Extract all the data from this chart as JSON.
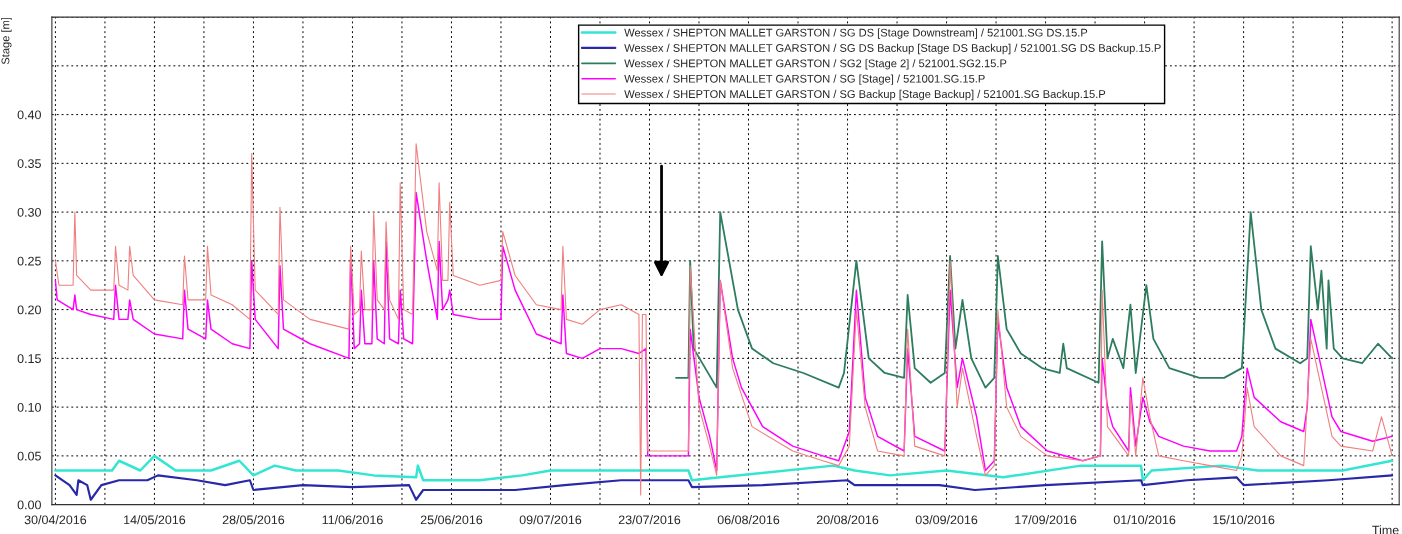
{
  "chart_data": {
    "type": "line",
    "xlabel": "Time",
    "ylabel": "Stage [m]",
    "xlim": [
      "2016-04-29T12:00",
      "2016-11-06"
    ],
    "ylim": [
      0,
      0.5
    ],
    "xticks": [
      {
        "value": "2016-04-30",
        "label": "30/04/2016"
      },
      {
        "value": "2016-05-07",
        "label": null
      },
      {
        "value": "2016-05-14",
        "label": "14/05/2016"
      },
      {
        "value": "2016-05-21",
        "label": null
      },
      {
        "value": "2016-05-28",
        "label": "28/05/2016"
      },
      {
        "value": "2016-06-04",
        "label": null
      },
      {
        "value": "2016-06-11",
        "label": "11/06/2016"
      },
      {
        "value": "2016-06-18",
        "label": null
      },
      {
        "value": "2016-06-25",
        "label": "25/06/2016"
      },
      {
        "value": "2016-07-02",
        "label": null
      },
      {
        "value": "2016-07-09",
        "label": "09/07/2016"
      },
      {
        "value": "2016-07-16",
        "label": null
      },
      {
        "value": "2016-07-23",
        "label": "23/07/2016"
      },
      {
        "value": "2016-07-30",
        "label": null
      },
      {
        "value": "2016-08-06",
        "label": "06/08/2016"
      },
      {
        "value": "2016-08-13",
        "label": null
      },
      {
        "value": "2016-08-20",
        "label": "20/08/2016"
      },
      {
        "value": "2016-08-27",
        "label": null
      },
      {
        "value": "2016-09-03",
        "label": "03/09/2016"
      },
      {
        "value": "2016-09-10",
        "label": null
      },
      {
        "value": "2016-09-17",
        "label": "17/09/2016"
      },
      {
        "value": "2016-09-24",
        "label": null
      },
      {
        "value": "2016-10-01",
        "label": "01/10/2016"
      },
      {
        "value": "2016-10-08",
        "label": null
      },
      {
        "value": "2016-10-15",
        "label": "15/10/2016"
      },
      {
        "value": "2016-10-22",
        "label": null
      },
      {
        "value": "2016-10-29",
        "label": null
      },
      {
        "value": "2016-11-05",
        "label": null
      }
    ],
    "yticks": [
      {
        "value": 0,
        "label": "0.00"
      },
      {
        "value": 0.05,
        "label": "0.05"
      },
      {
        "value": 0.1,
        "label": "0.10"
      },
      {
        "value": 0.15,
        "label": "0.15"
      },
      {
        "value": 0.2,
        "label": "0.20"
      },
      {
        "value": 0.25,
        "label": "0.25"
      },
      {
        "value": 0.3,
        "label": "0.30"
      },
      {
        "value": 0.35,
        "label": "0.35"
      },
      {
        "value": 0.4,
        "label": "0.40"
      },
      {
        "value": 0.45,
        "label": null
      },
      {
        "value": 0.5,
        "label": null
      }
    ],
    "grid": true,
    "legend": "top right",
    "line_style": "solid",
    "marker": "none",
    "series": [
      {
        "name": "Wessex / SHEPTON MALLET GARSTON / SG DS [Stage Downstream] / 521001.SG DS.15.P",
        "color": "#33e6d2",
        "x": [
          "2016-04-30",
          "2016-05-08",
          "2016-05-09",
          "2016-05-12",
          "2016-05-14",
          "2016-05-17",
          "2016-05-22",
          "2016-05-26",
          "2016-05-28",
          "2016-05-31",
          "2016-06-03",
          "2016-06-09",
          "2016-06-14",
          "2016-06-20",
          "2016-06-20T06:00",
          "2016-06-21",
          "2016-06-29",
          "2016-07-05",
          "2016-07-09",
          "2016-07-19",
          "2016-07-28T12:00",
          "2016-07-29",
          "2016-08-02",
          "2016-08-18",
          "2016-08-21",
          "2016-08-26",
          "2016-09-03",
          "2016-09-11",
          "2016-09-22",
          "2016-09-30T12:00",
          "2016-09-30T18:00",
          "2016-10-02",
          "2016-10-12",
          "2016-10-17",
          "2016-10-29",
          "2016-11-05"
        ],
        "values": [
          0.035,
          0.035,
          0.045,
          0.035,
          0.05,
          0.035,
          0.035,
          0.045,
          0.03,
          0.04,
          0.035,
          0.035,
          0.03,
          0.028,
          0.04,
          0.025,
          0.025,
          0.03,
          0.035,
          0.035,
          0.035,
          0.025,
          0.028,
          0.04,
          0.035,
          0.03,
          0.035,
          0.028,
          0.04,
          0.04,
          0.025,
          0.035,
          0.04,
          0.035,
          0.035,
          0.045
        ]
      },
      {
        "name": "Wessex / SHEPTON MALLET GARSTON / SG DS Backup [Stage DS Backup] / 521001.SG DS Backup.15.P",
        "color": "#2828a8",
        "x": [
          "2016-04-30",
          "2016-05-02",
          "2016-05-03",
          "2016-05-03T06:00",
          "2016-05-04T12:00",
          "2016-05-05",
          "2016-05-06T12:00",
          "2016-05-09",
          "2016-05-13",
          "2016-05-14T12:00",
          "2016-05-20",
          "2016-05-24",
          "2016-05-27T12:00",
          "2016-05-28",
          "2016-06-04",
          "2016-06-11",
          "2016-06-19",
          "2016-06-20",
          "2016-06-21",
          "2016-07-04",
          "2016-07-11",
          "2016-07-19",
          "2016-07-28T12:00",
          "2016-07-29",
          "2016-08-08",
          "2016-08-20",
          "2016-08-21",
          "2016-09-02",
          "2016-09-07",
          "2016-09-17",
          "2016-09-30T12:00",
          "2016-09-30T18:00",
          "2016-10-07",
          "2016-10-14",
          "2016-10-15",
          "2016-10-27",
          "2016-11-05"
        ],
        "values": [
          0.03,
          0.02,
          0.01,
          0.025,
          0.02,
          0.005,
          0.02,
          0.025,
          0.025,
          0.03,
          0.025,
          0.02,
          0.025,
          0.015,
          0.02,
          0.018,
          0.02,
          0.005,
          0.015,
          0.015,
          0.02,
          0.025,
          0.025,
          0.018,
          0.02,
          0.025,
          0.02,
          0.02,
          0.015,
          0.02,
          0.025,
          0.02,
          0.025,
          0.028,
          0.02,
          0.025,
          0.03
        ]
      },
      {
        "name": "Wessex / SHEPTON MALLET GARSTON / SG2 [Stage 2] / 521001.SG2.15.P",
        "color": "#2e7d5e",
        "x": [
          "2016-07-26T18:00",
          "2016-07-28T12:00",
          "2016-07-28T18:00",
          "2016-07-29T06:00",
          "2016-08-01T12:00",
          "2016-08-02",
          "2016-08-04T12:00",
          "2016-08-06T12:00",
          "2016-08-09T12:00",
          "2016-08-13T18:00",
          "2016-08-18T18:00",
          "2016-08-19T12:00",
          "2016-08-21T06:00",
          "2016-08-23",
          "2016-08-25T06:00",
          "2016-08-28",
          "2016-08-28T12:00",
          "2016-08-29T12:00",
          "2016-08-31T18:00",
          "2016-09-02T18:00",
          "2016-09-03T12:00",
          "2016-09-04T06:00",
          "2016-09-05T06:00",
          "2016-09-06T12:00",
          "2016-09-08T12:00",
          "2016-09-09T18:00",
          "2016-09-10T06:00",
          "2016-09-11T12:00",
          "2016-09-13T12:00",
          "2016-09-16T12:00",
          "2016-09-19",
          "2016-09-19T12:00",
          "2016-09-20",
          "2016-09-24T12:00",
          "2016-09-25",
          "2016-09-25T18:00",
          "2016-09-26T12:00",
          "2016-09-28",
          "2016-09-29",
          "2016-09-29T18:00",
          "2016-10-01T06:00",
          "2016-10-02T06:00",
          "2016-10-04T12:00",
          "2016-10-08T18:00",
          "2016-10-12T06:00",
          "2016-10-14T18:00",
          "2016-10-16",
          "2016-10-17T12:00",
          "2016-10-19T12:00",
          "2016-10-23",
          "2016-10-24",
          "2016-10-24T12:00",
          "2016-10-25T12:00",
          "2016-10-26",
          "2016-10-26T18:00",
          "2016-10-27",
          "2016-10-27T18:00",
          "2016-10-29",
          "2016-10-31T18:00",
          "2016-11-03",
          "2016-11-05"
        ],
        "values": [
          0.13,
          0.13,
          0.25,
          0.16,
          0.12,
          0.3,
          0.2,
          0.16,
          0.145,
          0.135,
          0.12,
          0.135,
          0.25,
          0.15,
          0.135,
          0.13,
          0.215,
          0.14,
          0.125,
          0.135,
          0.255,
          0.16,
          0.21,
          0.15,
          0.12,
          0.13,
          0.255,
          0.18,
          0.155,
          0.14,
          0.135,
          0.165,
          0.14,
          0.125,
          0.27,
          0.15,
          0.17,
          0.14,
          0.205,
          0.135,
          0.225,
          0.17,
          0.14,
          0.13,
          0.13,
          0.14,
          0.3,
          0.2,
          0.16,
          0.145,
          0.15,
          0.265,
          0.2,
          0.24,
          0.16,
          0.23,
          0.16,
          0.15,
          0.145,
          0.165,
          0.15
        ]
      },
      {
        "name": "Wessex / SHEPTON MALLET GARSTON / SG [Stage] / 521001.SG.15.P",
        "color": "#ff00ff",
        "x": [
          "2016-04-30",
          "2016-04-30T06:00",
          "2016-05-02T12:00",
          "2016-05-02T18:00",
          "2016-05-03",
          "2016-05-05",
          "2016-05-08T06:00",
          "2016-05-08T12:00",
          "2016-05-09",
          "2016-05-10T06:00",
          "2016-05-10T12:00",
          "2016-05-11",
          "2016-05-14",
          "2016-05-18",
          "2016-05-18T06:00",
          "2016-05-18T18:00",
          "2016-05-21T06:00",
          "2016-05-21T12:00",
          "2016-05-22",
          "2016-05-25",
          "2016-05-27T12:00",
          "2016-05-27T18:00",
          "2016-05-28T06:00",
          "2016-05-31T12:00",
          "2016-05-31T18:00",
          "2016-06-01T06:00",
          "2016-06-05",
          "2016-06-10T12:00",
          "2016-06-10T18:00",
          "2016-06-11T06:00",
          "2016-06-12",
          "2016-06-12T06:00",
          "2016-06-12T18:00",
          "2016-06-13T18:00",
          "2016-06-14",
          "2016-06-14T12:00",
          "2016-06-15T12:00",
          "2016-06-15T18:00",
          "2016-06-16T06:00",
          "2016-06-17T12:00",
          "2016-06-17T18:00",
          "2016-06-18T06:00",
          "2016-06-19T12:00",
          "2016-06-20",
          "2016-06-21T12:00",
          "2016-06-23",
          "2016-06-23T06:00",
          "2016-06-23T18:00",
          "2016-06-24T12:00",
          "2016-06-24T18:00",
          "2016-06-25T06:00",
          "2016-06-29",
          "2016-07-02",
          "2016-07-02T06:00",
          "2016-07-04",
          "2016-07-07",
          "2016-07-10T12:00",
          "2016-07-10T18:00",
          "2016-07-11T06:00",
          "2016-07-13T12:00",
          "2016-07-16",
          "2016-07-19",
          "2016-07-21T12:00",
          "2016-07-22T12:00",
          "2016-07-22T18:00",
          "2016-07-28T12:00",
          "2016-07-28T18:00",
          "2016-07-30",
          "2016-07-31T12:00",
          "2016-08-01T12:00",
          "2016-08-02",
          "2016-08-03T18:00",
          "2016-08-05",
          "2016-08-08",
          "2016-08-12T06:00",
          "2016-08-16T12:00",
          "2016-08-18T18:00",
          "2016-08-20T06:00",
          "2016-08-21T06:00",
          "2016-08-22T12:00",
          "2016-08-24T06:00",
          "2016-08-28",
          "2016-08-28T12:00",
          "2016-08-29T12:00",
          "2016-09-02T18:00",
          "2016-09-03T12:00",
          "2016-09-04T12:00",
          "2016-09-05T06:00",
          "2016-09-07T06:00",
          "2016-09-08T12:00",
          "2016-09-09T18:00",
          "2016-09-10T06:00",
          "2016-09-11T12:00",
          "2016-09-13T12:00",
          "2016-09-17T06:00",
          "2016-09-22T06:00",
          "2016-09-24T18:00",
          "2016-09-25",
          "2016-09-25T18:00",
          "2016-09-26T12:00",
          "2016-09-28T18:00",
          "2016-09-29",
          "2016-09-29T18:00",
          "2016-09-30T18:00",
          "2016-10-01T18:00",
          "2016-10-02T12:00",
          "2016-10-03",
          "2016-10-06T12:00",
          "2016-10-10T06:00",
          "2016-10-14",
          "2016-10-14T18:00",
          "2016-10-15T12:00",
          "2016-10-16T12:00",
          "2016-10-20T06:00",
          "2016-10-23T12:00",
          "2016-10-24",
          "2016-10-24T12:00",
          "2016-10-26",
          "2016-10-27T12:00",
          "2016-10-28T18:00",
          "2016-11-02T06:00",
          "2016-11-05"
        ],
        "values": [
          0.23,
          0.21,
          0.2,
          0.215,
          0.2,
          0.195,
          0.19,
          0.225,
          0.19,
          0.19,
          0.21,
          0.19,
          0.175,
          0.17,
          0.22,
          0.18,
          0.17,
          0.21,
          0.18,
          0.165,
          0.16,
          0.25,
          0.19,
          0.16,
          0.245,
          0.18,
          0.165,
          0.15,
          0.255,
          0.16,
          0.165,
          0.22,
          0.165,
          0.165,
          0.25,
          0.17,
          0.165,
          0.27,
          0.17,
          0.165,
          0.22,
          0.17,
          0.165,
          0.32,
          0.25,
          0.19,
          0.27,
          0.2,
          0.21,
          0.22,
          0.195,
          0.19,
          0.19,
          0.265,
          0.22,
          0.175,
          0.165,
          0.215,
          0.155,
          0.15,
          0.16,
          0.16,
          0.155,
          0.16,
          0.05,
          0.05,
          0.18,
          0.11,
          0.07,
          0.035,
          0.23,
          0.15,
          0.12,
          0.08,
          0.06,
          0.05,
          0.045,
          0.075,
          0.22,
          0.11,
          0.07,
          0.055,
          0.16,
          0.07,
          0.055,
          0.22,
          0.12,
          0.15,
          0.09,
          0.035,
          0.045,
          0.19,
          0.12,
          0.08,
          0.055,
          0.045,
          0.05,
          0.15,
          0.1,
          0.08,
          0.055,
          0.12,
          0.06,
          0.11,
          0.085,
          null,
          0.07,
          0.06,
          0.055,
          0.055,
          0.07,
          0.14,
          0.11,
          0.085,
          0.075,
          0.1,
          0.19,
          0.14,
          0.09,
          0.075,
          0.065,
          0.07
        ]
      },
      {
        "name": "Wessex / SHEPTON MALLET GARSTON / SG Backup [Stage Backup] / 521001.SG Backup.15.P",
        "color": "#f08080",
        "x": [
          "2016-04-30",
          "2016-04-30T12:00",
          "2016-05-02T12:00",
          "2016-05-02T18:00",
          "2016-05-03",
          "2016-05-05",
          "2016-05-08T06:00",
          "2016-05-08T12:00",
          "2016-05-09",
          "2016-05-10T06:00",
          "2016-05-10T12:00",
          "2016-05-11",
          "2016-05-14",
          "2016-05-18",
          "2016-05-18T06:00",
          "2016-05-18T18:00",
          "2016-05-21T06:00",
          "2016-05-21T12:00",
          "2016-05-22",
          "2016-05-25",
          "2016-05-27T12:00",
          "2016-05-27T18:00",
          "2016-05-28T06:00",
          "2016-05-31T12:00",
          "2016-05-31T18:00",
          "2016-06-01T06:00",
          "2016-06-05",
          "2016-06-10T12:00",
          "2016-06-10T18:00",
          "2016-06-11T06:00",
          "2016-06-12",
          "2016-06-12T06:00",
          "2016-06-12T18:00",
          "2016-06-13T18:00",
          "2016-06-14",
          "2016-06-14T12:00",
          "2016-06-15T12:00",
          "2016-06-15T18:00",
          "2016-06-16T06:00",
          "2016-06-17T12:00",
          "2016-06-17T18:00",
          "2016-06-18T06:00",
          "2016-06-19T12:00",
          "2016-06-20",
          "2016-06-21T12:00",
          "2016-06-23",
          "2016-06-23T06:00",
          "2016-06-23T18:00",
          "2016-06-24T12:00",
          "2016-06-24T18:00",
          "2016-06-25T06:00",
          "2016-06-29",
          "2016-07-02",
          "2016-07-02T06:00",
          "2016-07-04",
          "2016-07-07",
          "2016-07-10T12:00",
          "2016-07-10T18:00",
          "2016-07-11T06:00",
          "2016-07-13T12:00",
          "2016-07-16",
          "2016-07-19",
          "2016-07-21T12:00",
          "2016-07-21T18:00",
          "2016-07-22",
          "2016-07-22T12:00",
          "2016-07-22T18:00",
          "2016-07-28T12:00",
          "2016-07-28T18:00",
          "2016-07-30",
          "2016-07-31T12:00",
          "2016-08-01T12:00",
          "2016-08-02",
          "2016-08-03T18:00",
          "2016-08-06T12:00",
          "2016-08-12T06:00",
          "2016-08-16T12:00",
          "2016-08-18T18:00",
          "2016-08-20T06:00",
          "2016-08-21T06:00",
          "2016-08-22T12:00",
          "2016-08-24T06:00",
          "2016-08-28",
          "2016-08-28T12:00",
          "2016-08-29T12:00",
          "2016-09-02T18:00",
          "2016-09-03T12:00",
          "2016-09-04T12:00",
          "2016-09-05T06:00",
          "2016-09-07T06:00",
          "2016-09-08T12:00",
          "2016-09-09T18:00",
          "2016-09-10T06:00",
          "2016-09-11T12:00",
          "2016-09-13T12:00",
          "2016-09-17T06:00",
          "2016-09-22T06:00",
          "2016-09-24T18:00",
          "2016-09-25",
          "2016-09-25T18:00",
          "2016-09-28T18:00",
          "2016-09-29",
          "2016-09-29T18:00",
          "2016-09-30T18:00",
          "2016-10-01T18:00",
          "2016-10-03",
          "2016-10-06T12:00",
          "2016-10-10T06:00",
          "2016-10-14",
          "2016-10-14T18:00",
          "2016-10-15T12:00",
          "2016-10-16T12:00",
          "2016-10-20T06:00",
          "2016-10-23T12:00",
          "2016-10-24T12:00",
          "2016-10-26",
          "2016-10-27T12:00",
          "2016-10-28T18:00",
          "2016-11-02T06:00",
          "2016-11-03T12:00",
          "2016-11-05"
        ],
        "values": [
          0.25,
          0.225,
          0.225,
          0.3,
          0.235,
          0.22,
          0.22,
          0.265,
          0.225,
          0.22,
          0.265,
          0.235,
          0.21,
          0.205,
          0.255,
          0.21,
          0.21,
          0.265,
          0.215,
          0.205,
          0.19,
          0.36,
          0.22,
          0.195,
          0.305,
          0.21,
          0.19,
          0.18,
          0.265,
          0.195,
          0.2,
          0.26,
          0.2,
          0.2,
          0.3,
          0.21,
          0.2,
          0.29,
          0.21,
          0.19,
          0.33,
          0.2,
          0.195,
          0.37,
          0.28,
          0.24,
          0.33,
          0.23,
          0.23,
          0.31,
          0.235,
          0.225,
          0.23,
          0.28,
          0.235,
          0.205,
          0.2,
          0.265,
          0.19,
          0.185,
          0.2,
          0.205,
          0.195,
          0.01,
          0.195,
          0.195,
          0.055,
          0.055,
          0.245,
          0.1,
          0.06,
          0.03,
          0.23,
          0.14,
          0.08,
          0.055,
          0.045,
          0.04,
          0.06,
          0.2,
          0.1,
          0.055,
          0.05,
          0.18,
          0.06,
          0.05,
          0.25,
          0.1,
          0.14,
          0.07,
          0.03,
          0.04,
          0.2,
          0.1,
          0.07,
          0.05,
          0.045,
          0.05,
          0.22,
          0.08,
          0.05,
          0.11,
          0.05,
          0.13,
          0.09,
          0.05,
          0.045,
          0.04,
          0.035,
          0.05,
          0.12,
          0.08,
          0.05,
          0.04,
          0.17,
          0.12,
          0.07,
          0.06,
          0.055,
          0.09,
          0.05
        ]
      }
    ]
  }
}
